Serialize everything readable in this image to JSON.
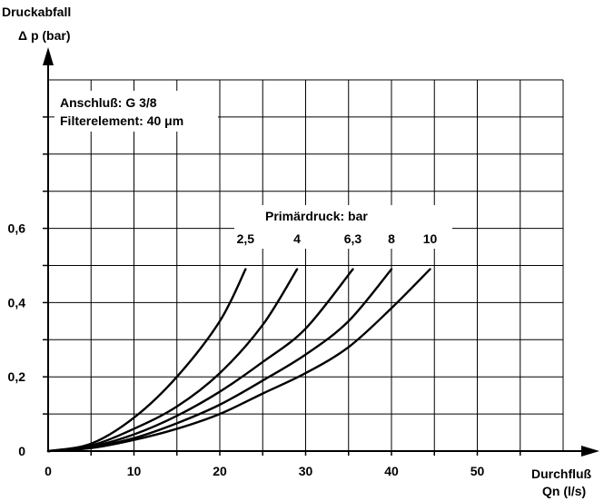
{
  "chart_data": {
    "type": "line",
    "ylabel_line1": "Druckabfall",
    "ylabel_line2": "Δ p (bar)",
    "xlabel_line1": "Durchfluß",
    "xlabel_line2": "Qn (l/s)",
    "xlim": [
      0,
      60
    ],
    "ylim": [
      0,
      1.0
    ],
    "x_ticks": [
      0,
      10,
      20,
      30,
      40,
      50
    ],
    "x_tick_labels": [
      "0",
      "10",
      "20",
      "30",
      "40",
      "50"
    ],
    "y_ticks": [
      0,
      0.2,
      0.4,
      0.6
    ],
    "y_tick_labels": [
      "0",
      "0,2",
      "0,4",
      "0,6"
    ],
    "grid": true,
    "annotations": {
      "connection": "Anschluß: G 3/8",
      "filter": "Filterelement: 40 μm",
      "legend_title": "Primärdruck: bar"
    },
    "series": [
      {
        "name": "2,5",
        "x": [
          0,
          5,
          10,
          15,
          20,
          23
        ],
        "y": [
          0,
          0.02,
          0.09,
          0.2,
          0.35,
          0.49
        ]
      },
      {
        "name": "4",
        "x": [
          0,
          5,
          10,
          15,
          20,
          25,
          29
        ],
        "y": [
          0,
          0.015,
          0.06,
          0.12,
          0.21,
          0.34,
          0.49
        ]
      },
      {
        "name": "6,3",
        "x": [
          0,
          5,
          10,
          15,
          20,
          25,
          30,
          35.5
        ],
        "y": [
          0,
          0.012,
          0.045,
          0.095,
          0.16,
          0.24,
          0.33,
          0.49
        ]
      },
      {
        "name": "8",
        "x": [
          0,
          5,
          10,
          15,
          20,
          25,
          30,
          35,
          40
        ],
        "y": [
          0,
          0.01,
          0.035,
          0.075,
          0.125,
          0.19,
          0.26,
          0.35,
          0.49
        ]
      },
      {
        "name": "10",
        "x": [
          0,
          5,
          10,
          15,
          20,
          25,
          30,
          35,
          40,
          44.5
        ],
        "y": [
          0,
          0.008,
          0.03,
          0.06,
          0.1,
          0.155,
          0.21,
          0.28,
          0.385,
          0.49
        ]
      }
    ]
  }
}
